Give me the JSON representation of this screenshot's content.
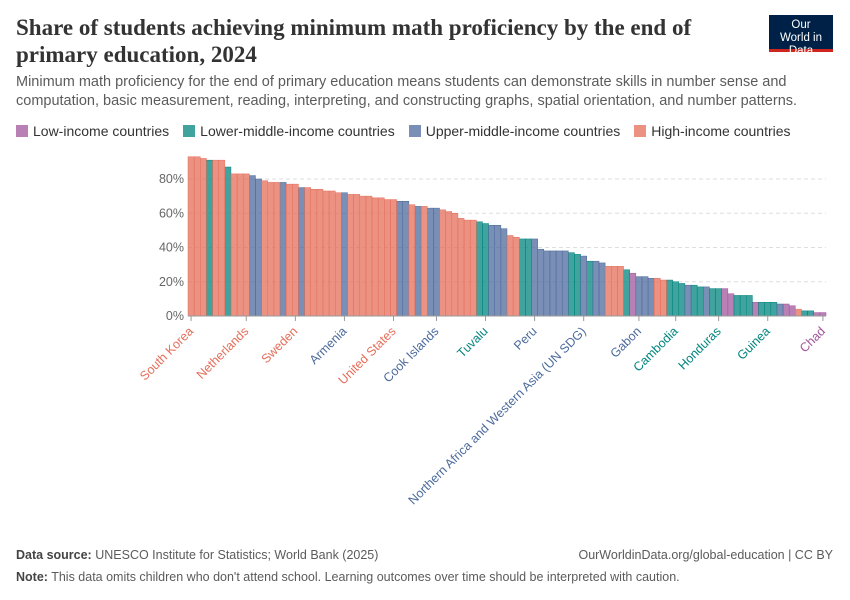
{
  "chart_data": {
    "type": "bar",
    "title": "Share of students achieving minimum math proficiency by the end of primary education, 2024",
    "subtitle": "Minimum math proficiency for the end of primary education means students can demonstrate skills in number sense and computation, basic measurement, reading, interpreting, and constructing graphs, spatial orientation, and number patterns.",
    "logo": "Our World in Data",
    "source_label": "Data source:",
    "source": "UNESCO Institute for Statistics; World Bank (2025)",
    "url": "OurWorldinData.org/global-education | CC BY",
    "note_label": "Note:",
    "note": "This data omits children who don't attend school. Learning outcomes over time should be interpreted with caution.",
    "ylim": [
      0,
      100
    ],
    "yticks": [
      {
        "value": 0,
        "label": "0%"
      },
      {
        "value": 20,
        "label": "20%"
      },
      {
        "value": 40,
        "label": "40%"
      },
      {
        "value": 60,
        "label": "60%"
      },
      {
        "value": 80,
        "label": "80%"
      }
    ],
    "grid": true,
    "categories": [
      "South Korea",
      null,
      null,
      null,
      null,
      null,
      null,
      null,
      null,
      "Netherlands",
      null,
      null,
      null,
      null,
      null,
      null,
      null,
      "Sweden",
      null,
      null,
      null,
      null,
      null,
      null,
      null,
      "Armenia",
      null,
      null,
      null,
      null,
      null,
      null,
      null,
      "United States",
      null,
      null,
      null,
      null,
      null,
      null,
      "Cook Islands",
      null,
      null,
      null,
      null,
      null,
      null,
      null,
      "Tuvalu",
      null,
      null,
      null,
      null,
      null,
      null,
      null,
      "Peru",
      null,
      null,
      null,
      null,
      null,
      null,
      null,
      "Northern Africa and Western Asia (UN SDG)",
      null,
      null,
      null,
      null,
      null,
      null,
      null,
      null,
      "Gabon",
      null,
      null,
      null,
      null,
      null,
      "Cambodia",
      null,
      null,
      null,
      null,
      null,
      null,
      "Honduras",
      null,
      null,
      null,
      null,
      null,
      null,
      null,
      "Guinea",
      null,
      null,
      null,
      null,
      null,
      null,
      null,
      null,
      "Chad"
    ],
    "series": [
      {
        "name": "Low-income countries",
        "color": "#a2559c",
        "values": [
          null,
          null,
          null,
          null,
          null,
          null,
          null,
          null,
          null,
          null,
          null,
          null,
          null,
          null,
          null,
          null,
          null,
          null,
          null,
          null,
          null,
          null,
          null,
          null,
          null,
          null,
          null,
          null,
          null,
          null,
          null,
          null,
          null,
          null,
          null,
          null,
          null,
          null,
          null,
          null,
          null,
          null,
          null,
          null,
          null,
          null,
          null,
          null,
          null,
          null,
          null,
          null,
          null,
          null,
          null,
          null,
          null,
          null,
          null,
          null,
          null,
          null,
          null,
          null,
          null,
          null,
          null,
          null,
          null,
          null,
          null,
          null,
          25,
          null,
          null,
          null,
          null,
          null,
          null,
          null,
          null,
          null,
          null,
          null,
          null,
          null,
          null,
          16,
          13,
          null,
          null,
          null,
          8,
          null,
          null,
          null,
          null,
          7,
          6,
          null,
          null,
          null,
          2,
          2
        ]
      },
      {
        "name": "Lower-middle-income countries",
        "color": "#00847e",
        "values": [
          null,
          null,
          null,
          91,
          null,
          null,
          87,
          null,
          null,
          null,
          null,
          null,
          null,
          null,
          null,
          null,
          null,
          null,
          null,
          null,
          null,
          null,
          null,
          null,
          null,
          null,
          null,
          null,
          null,
          null,
          null,
          null,
          null,
          null,
          null,
          null,
          null,
          null,
          null,
          null,
          null,
          null,
          null,
          null,
          null,
          null,
          null,
          55,
          54,
          null,
          null,
          null,
          null,
          null,
          45,
          45,
          null,
          null,
          null,
          null,
          null,
          null,
          37,
          36,
          null,
          32,
          null,
          null,
          null,
          null,
          null,
          27,
          null,
          null,
          null,
          null,
          null,
          null,
          21,
          20,
          19,
          null,
          18,
          17,
          null,
          16,
          16,
          null,
          null,
          12,
          12,
          12,
          null,
          8,
          8,
          8,
          null,
          null,
          null,
          null,
          3,
          3,
          null,
          null
        ]
      },
      {
        "name": "Upper-middle-income countries",
        "color": "#4c6a9c",
        "values": [
          null,
          null,
          null,
          null,
          null,
          null,
          null,
          null,
          null,
          null,
          82,
          80,
          null,
          null,
          null,
          78,
          null,
          null,
          75,
          null,
          null,
          null,
          null,
          null,
          null,
          72,
          null,
          null,
          null,
          null,
          null,
          null,
          null,
          null,
          67,
          67,
          null,
          64,
          null,
          63,
          63,
          null,
          null,
          null,
          null,
          null,
          null,
          null,
          null,
          53,
          53,
          51,
          null,
          null,
          null,
          null,
          45,
          39,
          38,
          38,
          38,
          38,
          null,
          null,
          35,
          null,
          32,
          31,
          null,
          null,
          null,
          null,
          null,
          23,
          23,
          22,
          null,
          null,
          null,
          null,
          null,
          18,
          null,
          null,
          17,
          null,
          null,
          null,
          null,
          null,
          null,
          null,
          null,
          null,
          null,
          null,
          7,
          null,
          null,
          null,
          null,
          null,
          null,
          null
        ]
      },
      {
        "name": "High-income countries",
        "color": "#e56e5a",
        "values": [
          93,
          93,
          92,
          null,
          91,
          91,
          null,
          83,
          83,
          83,
          null,
          null,
          79,
          78,
          78,
          null,
          77,
          77,
          null,
          75,
          74,
          74,
          73,
          73,
          72,
          null,
          71,
          71,
          70,
          70,
          69,
          69,
          68,
          68,
          null,
          null,
          65,
          null,
          64,
          null,
          null,
          62,
          61,
          60,
          57,
          56,
          56,
          null,
          null,
          null,
          null,
          null,
          47,
          46,
          null,
          null,
          null,
          null,
          null,
          null,
          null,
          null,
          null,
          null,
          null,
          null,
          null,
          null,
          29,
          29,
          29,
          null,
          null,
          null,
          null,
          null,
          22,
          21,
          null,
          null,
          null,
          null,
          null,
          null,
          null,
          null,
          null,
          null,
          null,
          null,
          null,
          null,
          null,
          null,
          null,
          null,
          null,
          null,
          null,
          4,
          null,
          null,
          null,
          null
        ]
      }
    ]
  }
}
